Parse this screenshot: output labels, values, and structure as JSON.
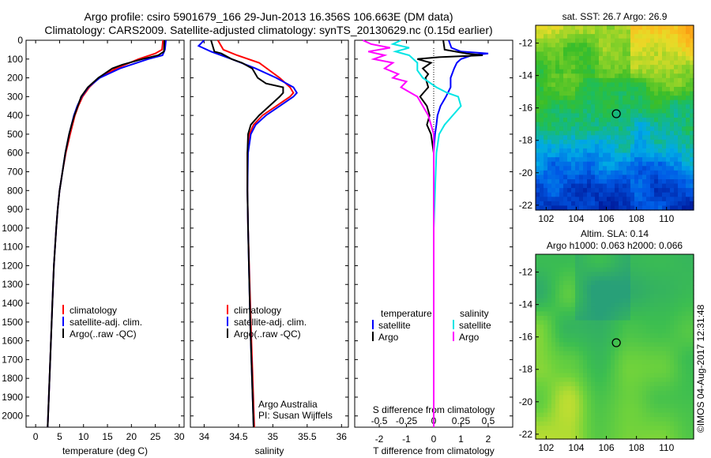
{
  "title": {
    "line1": "Argo profile: csiro 5901679_166 29-Jun-2013 16.356S 106.663E (DM data)",
    "line2": "Climatology: CARS2009. Satellite-adjusted climatology: synTS_20130629.nc (0.15d earlier)"
  },
  "depth_axis": {
    "ticks": [
      0,
      100,
      200,
      300,
      400,
      500,
      600,
      700,
      800,
      900,
      1000,
      1100,
      1200,
      1300,
      1400,
      1500,
      1600,
      1700,
      1800,
      1900,
      2000
    ],
    "range": [
      0,
      2060
    ]
  },
  "colors": {
    "climatology": "#ff0000",
    "satellite": "#0000ff",
    "argo": "#000000",
    "salinity_sat": "#00e5e5",
    "salinity_argo": "#ff00ff"
  },
  "chart_data": [
    {
      "type": "line",
      "name": "temperature-panel",
      "xlabel": "temperature (deg C)",
      "ylabel": "",
      "xlim": [
        -2,
        31
      ],
      "xticks": [
        0,
        5,
        10,
        15,
        20,
        25,
        30
      ],
      "ylim": [
        2060,
        0
      ],
      "legend": [
        "climatology",
        "satellite-adj. clim.",
        "Argo(..raw -QC)"
      ],
      "series": [
        {
          "name": "climatology",
          "depth": [
            0,
            50,
            70,
            100,
            150,
            200,
            250,
            300,
            350,
            400,
            450,
            500,
            600,
            700,
            800,
            900,
            1000,
            1200,
            1400,
            1600,
            1800,
            2000,
            2060
          ],
          "values": [
            26.6,
            26.4,
            25.0,
            21.5,
            16.8,
            13.2,
            11.2,
            9.8,
            8.9,
            8.2,
            7.7,
            7.2,
            6.3,
            5.6,
            5.0,
            4.6,
            4.3,
            3.8,
            3.5,
            3.2,
            2.9,
            2.6,
            2.5
          ]
        },
        {
          "name": "satellite",
          "depth": [
            0,
            50,
            80,
            100,
            150,
            200,
            250,
            300,
            350,
            400,
            450,
            500,
            600,
            700,
            800,
            900,
            1000,
            1200,
            1400,
            1600,
            1800,
            2000,
            2060
          ],
          "values": [
            27.2,
            27.0,
            26.5,
            23.5,
            17.6,
            13.4,
            11.0,
            9.6,
            8.7,
            8.0,
            7.5,
            7.0,
            6.2,
            5.6,
            5.0,
            4.6,
            4.3,
            3.8,
            3.5,
            3.2,
            2.9,
            2.6,
            2.5
          ]
        },
        {
          "name": "argo",
          "depth": [
            0,
            60,
            80,
            100,
            130,
            150,
            200,
            250,
            300,
            350,
            400,
            450,
            500,
            600,
            700,
            800,
            900,
            1000,
            1200,
            1400,
            1600,
            1800,
            2000,
            2060
          ],
          "values": [
            26.9,
            26.8,
            25.6,
            22.3,
            18.1,
            16.0,
            13.1,
            10.9,
            9.5,
            8.8,
            8.1,
            7.5,
            7.0,
            6.2,
            5.6,
            5.0,
            4.6,
            4.3,
            3.8,
            3.5,
            3.2,
            2.9,
            2.6,
            2.5
          ]
        }
      ]
    },
    {
      "type": "line",
      "name": "salinity-panel",
      "xlabel": "salinity",
      "xlim": [
        33.8,
        36.1
      ],
      "xticks": [
        34,
        34.5,
        35,
        35.5,
        36
      ],
      "ylim": [
        2060,
        0
      ],
      "legend": [
        "climatology",
        "satellite-adj. clim.",
        "Argo(..raw -QC)"
      ],
      "annotations": [
        "Argo Australia",
        "PI: Susan Wijffels"
      ],
      "series": [
        {
          "name": "climatology",
          "depth": [
            0,
            50,
            80,
            120,
            200,
            250,
            280,
            300,
            350,
            400,
            450,
            500,
            600,
            800,
            1000,
            1500,
            2060
          ],
          "values": [
            34.2,
            34.28,
            34.48,
            34.8,
            35.1,
            35.25,
            35.3,
            35.25,
            35.05,
            34.85,
            34.72,
            34.66,
            34.63,
            34.63,
            34.64,
            34.68,
            34.73
          ]
        },
        {
          "name": "satellite",
          "depth": [
            0,
            30,
            60,
            100,
            150,
            200,
            250,
            280,
            300,
            350,
            400,
            450,
            500,
            600,
            800,
            1000,
            1500,
            2060
          ],
          "values": [
            34.0,
            33.92,
            34.1,
            34.4,
            34.75,
            35.05,
            35.3,
            35.35,
            35.3,
            35.1,
            34.9,
            34.75,
            34.68,
            34.64,
            34.63,
            34.64,
            34.67,
            34.72
          ]
        },
        {
          "name": "argo",
          "depth": [
            0,
            60,
            70,
            100,
            120,
            150,
            200,
            230,
            250,
            280,
            300,
            350,
            400,
            450,
            500,
            600,
            800,
            1000,
            1500,
            2060
          ],
          "values": [
            34.1,
            34.15,
            34.25,
            34.4,
            34.55,
            34.7,
            34.78,
            34.9,
            35.15,
            35.15,
            35.1,
            34.95,
            34.8,
            34.68,
            34.64,
            34.63,
            34.63,
            34.64,
            34.67,
            34.72
          ]
        }
      ]
    },
    {
      "type": "line",
      "name": "difference-panel",
      "xlabel": "T difference from climatology",
      "xlabel_top": "S difference from climatology",
      "xlim": [
        -2.9,
        2.9
      ],
      "xticks": [
        -2,
        -1,
        0,
        1,
        2
      ],
      "s_ticks": [
        "-0.5",
        "-0.25",
        "0",
        "0.25",
        "0.5"
      ],
      "s_tick_positions": [
        -2,
        -1,
        0,
        1,
        2
      ],
      "ylim": [
        2060,
        0
      ],
      "legend_temp_title": "temperature",
      "legend_sal_title": "salinity",
      "legend_temp": [
        "satellite",
        "Argo"
      ],
      "legend_sal": [
        "satellite",
        "Argo"
      ],
      "series": [
        {
          "name": "T-satellite",
          "depth": [
            0,
            40,
            60,
            70,
            80,
            100,
            120,
            150,
            200,
            250,
            300,
            350,
            400,
            450,
            500,
            550,
            600,
            800,
            1000,
            1500,
            2060
          ],
          "values": [
            0.55,
            0.65,
            1.0,
            2.0,
            1.4,
            1.0,
            0.85,
            0.75,
            0.62,
            0.62,
            0.45,
            0.25,
            0.14,
            0.1,
            0.05,
            0.02,
            0.0,
            0.0,
            0.0,
            0.0,
            0.0
          ]
        },
        {
          "name": "T-argo",
          "depth": [
            0,
            50,
            70,
            80,
            90,
            100,
            120,
            150,
            180,
            200,
            250,
            300,
            350,
            400,
            450,
            500,
            550,
            600,
            700,
            800,
            1000,
            1500,
            2060
          ],
          "values": [
            0.35,
            0.4,
            1.2,
            1.8,
            0.2,
            -0.6,
            -0.1,
            -0.4,
            -0.2,
            -0.3,
            -0.2,
            -0.5,
            -0.25,
            -0.15,
            -0.25,
            -0.1,
            -0.05,
            0.0,
            0.0,
            0.0,
            0.0,
            0.0,
            0.0
          ]
        },
        {
          "name": "S-satellite",
          "depth": [
            0,
            20,
            40,
            60,
            80,
            120,
            160,
            200,
            250,
            280,
            300,
            350,
            400,
            450,
            500,
            600,
            800,
            1000,
            1500,
            2060
          ],
          "values": [
            -1.2,
            -1.5,
            -0.9,
            -1.4,
            -0.9,
            -0.6,
            -0.6,
            -0.4,
            0.1,
            0.5,
            0.9,
            1.0,
            0.7,
            0.4,
            0.2,
            0.1,
            0.05,
            0.0,
            0.0,
            0.0
          ]
        },
        {
          "name": "S-argo",
          "depth": [
            0,
            20,
            40,
            60,
            80,
            100,
            120,
            150,
            180,
            200,
            220,
            250,
            300,
            350,
            400,
            450,
            500,
            600,
            800,
            1000,
            1500,
            2060
          ],
          "values": [
            -2.6,
            -2.3,
            -1.6,
            -2.4,
            -1.8,
            -2.2,
            -1.5,
            -1.8,
            -1.3,
            -1.5,
            -1.0,
            -1.2,
            -0.6,
            -0.4,
            -0.2,
            -0.1,
            0.0,
            0.0,
            0.0,
            0.0,
            0.0,
            0.0
          ]
        }
      ]
    }
  ],
  "sst_map": {
    "label": "sat. SST: 26.7 Argo: 26.9",
    "xticks": [
      "102",
      "104",
      "106",
      "108",
      "110"
    ],
    "yticks": [
      "-12",
      "-14",
      "-16",
      "-18",
      "-20",
      "-22"
    ],
    "lon_range": [
      101.3,
      111.8
    ],
    "lat_range": [
      -22.3,
      -10.9
    ],
    "float_lon": 106.663,
    "float_lat": -16.356
  },
  "sla_map": {
    "label1": "Altim. SLA: 0.14",
    "label2": "Argo h1000: 0.063 h2000: 0.066",
    "xticks": [
      "102",
      "104",
      "106",
      "108",
      "110"
    ],
    "yticks": [
      "-12",
      "-14",
      "-16",
      "-18",
      "-20",
      "-22"
    ],
    "lon_range": [
      101.3,
      111.8
    ],
    "lat_range": [
      -22.3,
      -10.9
    ],
    "float_lon": 106.663,
    "float_lat": -16.356
  },
  "credit": "©IMOS 04-Aug-2017 12:31:48"
}
